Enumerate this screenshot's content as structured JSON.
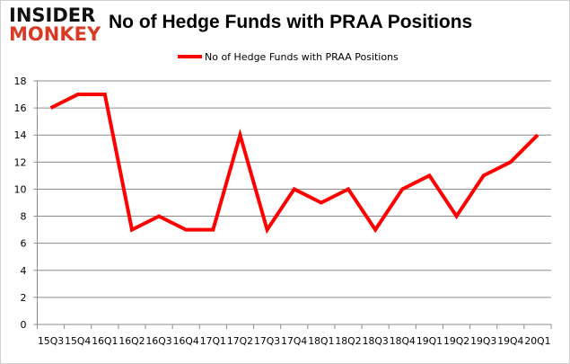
{
  "logo": {
    "line1": "INSIDER",
    "line2": "MONKEY"
  },
  "chart_data": {
    "type": "line",
    "title": "No of Hedge Funds with PRAA Positions",
    "categories": [
      "15Q3",
      "15Q4",
      "16Q1",
      "16Q2",
      "16Q3",
      "16Q4",
      "17Q1",
      "17Q2",
      "17Q3",
      "17Q4",
      "18Q1",
      "18Q2",
      "18Q3",
      "18Q4",
      "19Q1",
      "19Q2",
      "19Q3",
      "19Q4",
      "20Q1"
    ],
    "series": [
      {
        "name": "No of Hedge Funds with PRAA Positions",
        "values": [
          16,
          17,
          17,
          7,
          8,
          7,
          7,
          14,
          7,
          10,
          9,
          10,
          7,
          10,
          11,
          8,
          11,
          12,
          14
        ],
        "color": "#ff0000"
      }
    ],
    "ylim": [
      0,
      18
    ],
    "yticks": [
      0,
      2,
      4,
      6,
      8,
      10,
      12,
      14,
      16,
      18
    ],
    "grid": true,
    "legend": "top-center"
  }
}
